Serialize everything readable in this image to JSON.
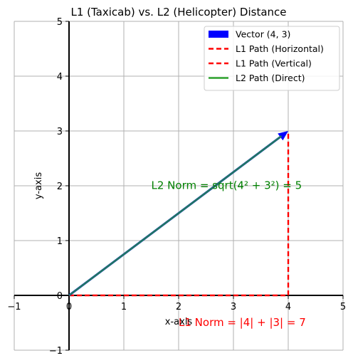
{
  "chart_data": {
    "type": "line",
    "title": "L1 (Taxicab) vs. L2 (Helicopter) Distance",
    "xlabel": "x-axis",
    "ylabel": "y-axis",
    "xlim": [
      -1,
      5
    ],
    "ylim": [
      -1,
      5
    ],
    "xticks": [
      -1,
      0,
      1,
      2,
      3,
      4,
      5
    ],
    "yticks": [
      -1,
      0,
      1,
      2,
      3,
      4,
      5
    ],
    "grid": true,
    "legend_position": "top-right",
    "series": [
      {
        "name": "Vector (4, 3)",
        "kind": "arrow",
        "color": "#0000ff",
        "points": [
          [
            0,
            0
          ],
          [
            4,
            3
          ]
        ]
      },
      {
        "name": "L1 Path (Horizontal)",
        "kind": "dashed-line",
        "color": "#ff0000",
        "points": [
          [
            0,
            0
          ],
          [
            4,
            0
          ]
        ]
      },
      {
        "name": "L1 Path (Vertical)",
        "kind": "dashed-line",
        "color": "#ff0000",
        "points": [
          [
            4,
            0
          ],
          [
            4,
            3
          ]
        ]
      },
      {
        "name": "L2 Path (Direct)",
        "kind": "line",
        "color": "#2ca02c",
        "points": [
          [
            0,
            0
          ],
          [
            4,
            3
          ]
        ]
      }
    ],
    "annotations": [
      {
        "text": "L2 Norm = sqrt(4² + 3²) = 5",
        "x": 1.5,
        "y": 2.0,
        "color": "#008000"
      },
      {
        "text": "L1 Norm = |4| + |3| = 7",
        "x": 2.0,
        "y": -0.5,
        "color": "#ff0000"
      }
    ]
  }
}
